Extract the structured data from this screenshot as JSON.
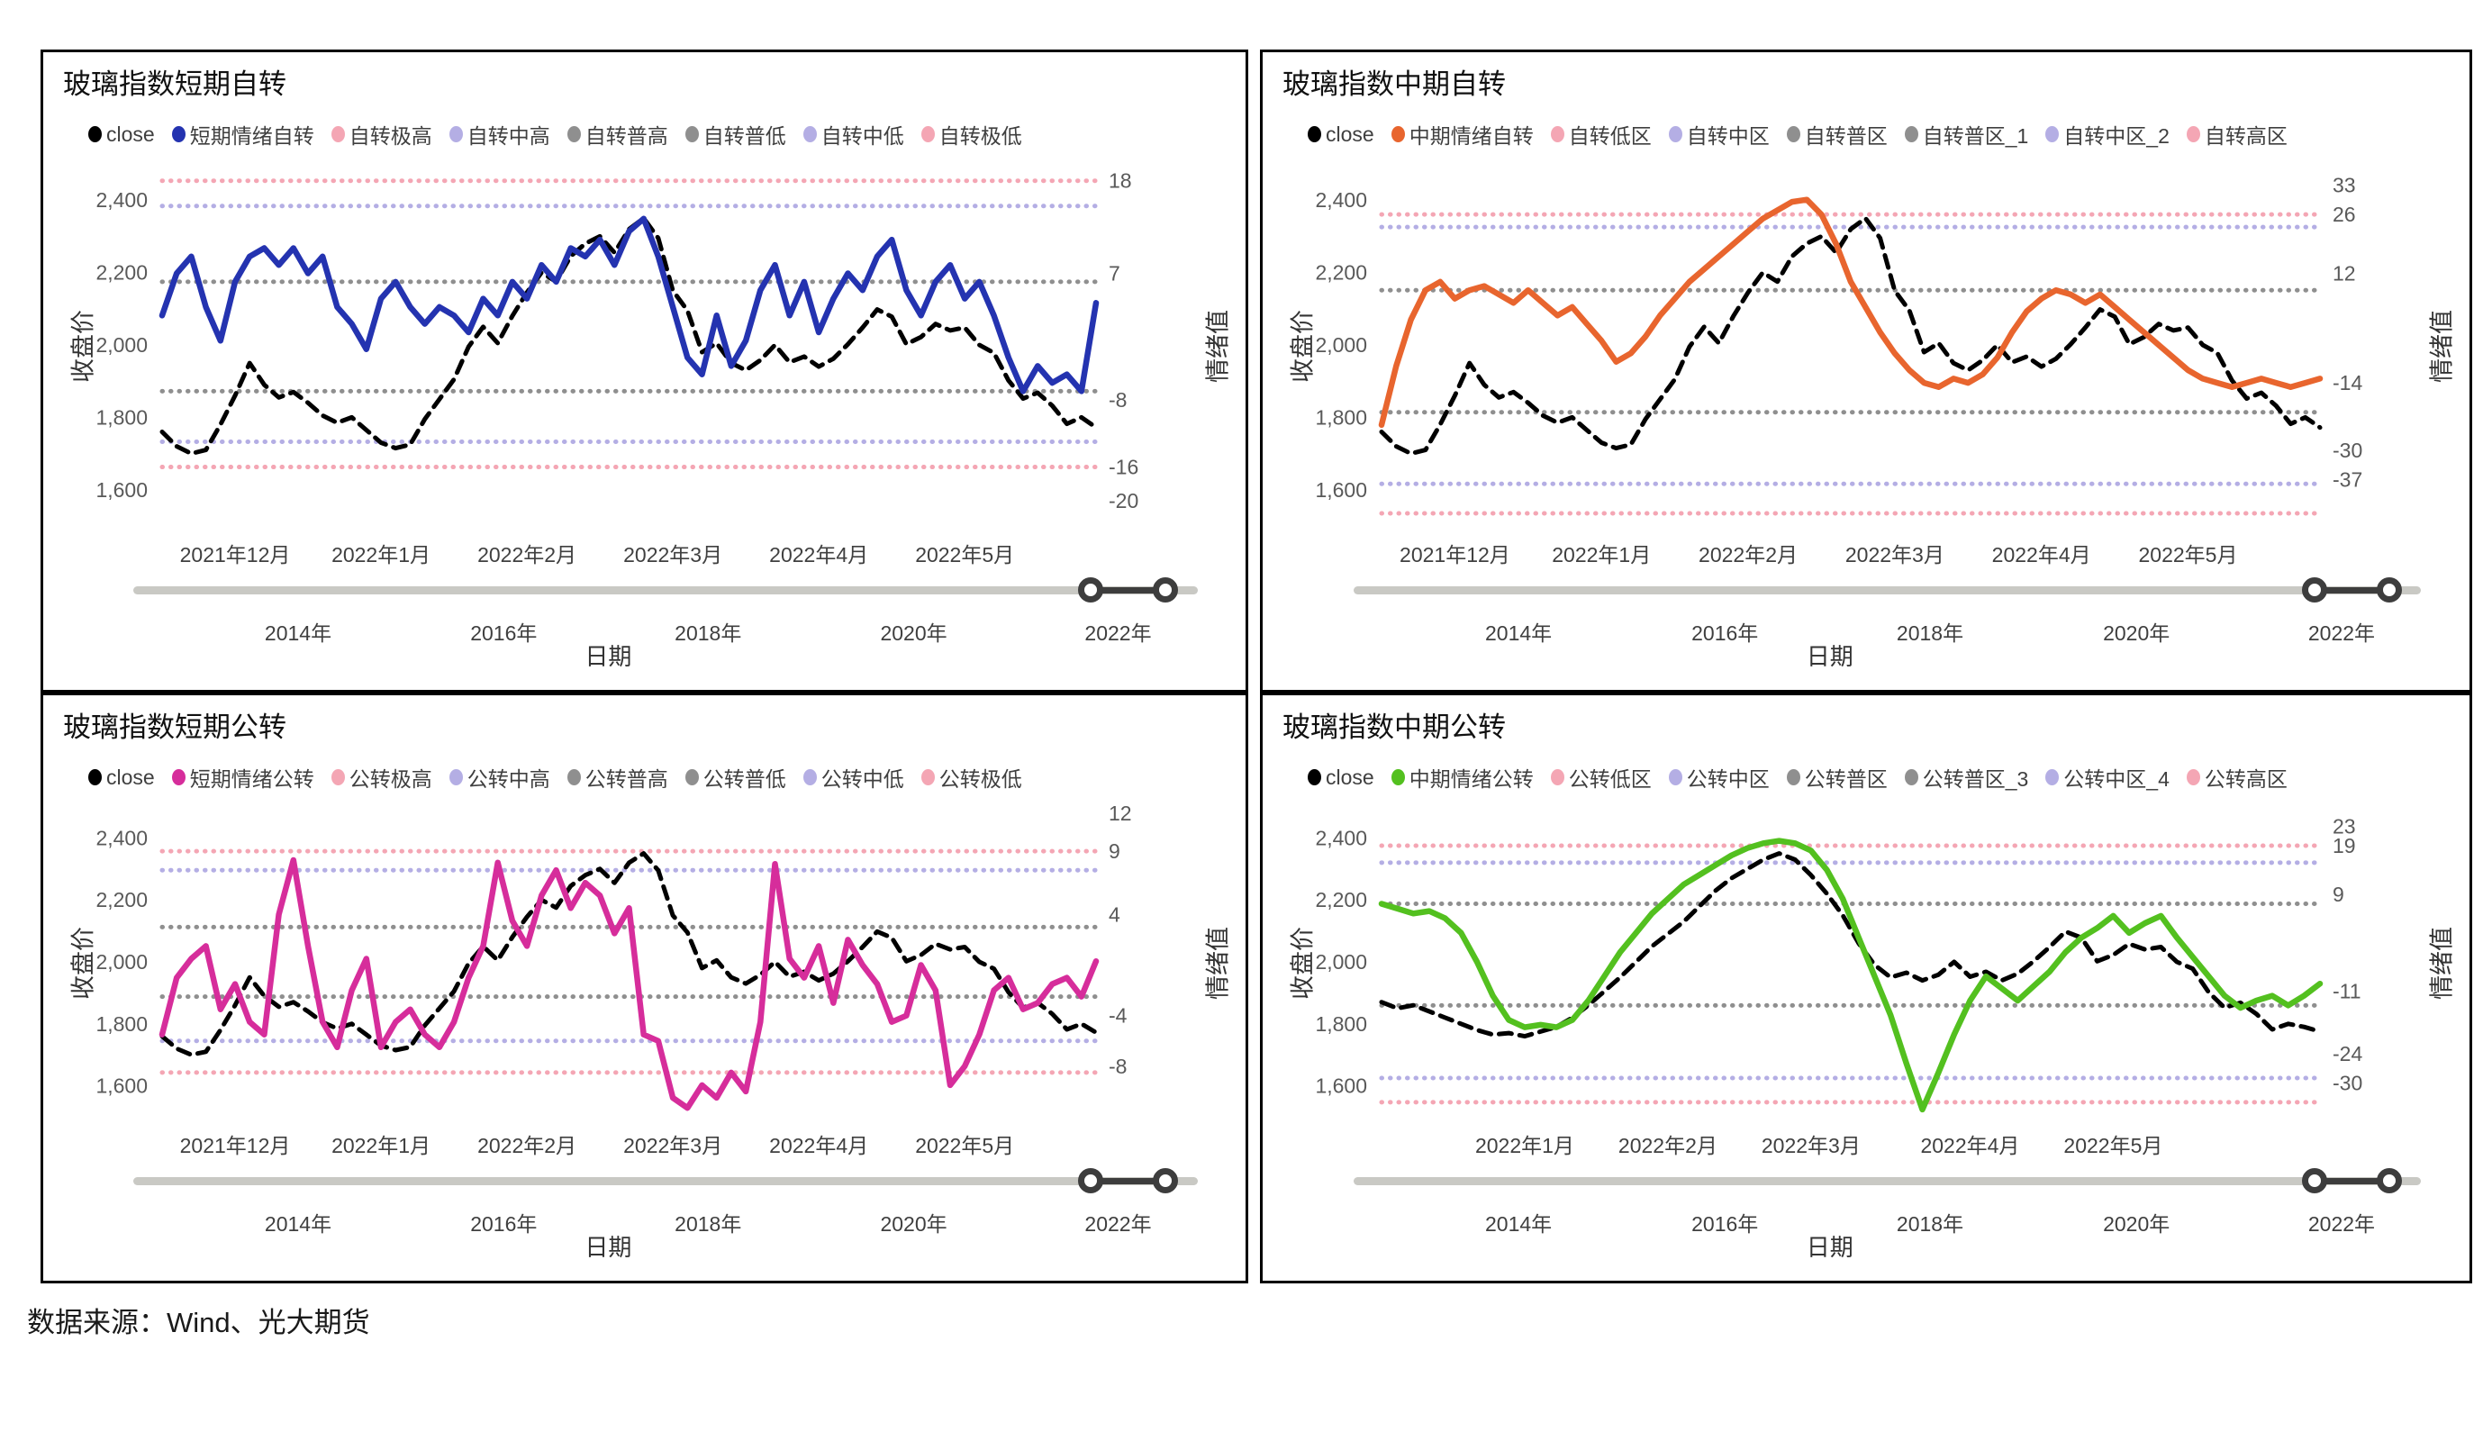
{
  "source_note": "数据来源：Wind、光大期货",
  "shared": {
    "left_axis_label": "收盘价",
    "right_axis_label": "情绪值",
    "x_axis_label": "日期",
    "left_axis_ticks": [
      {
        "label": "2,400",
        "value": 2400
      },
      {
        "label": "2,200",
        "value": 2200
      },
      {
        "label": "2,000",
        "value": 2000
      },
      {
        "label": "1,800",
        "value": 1800
      },
      {
        "label": "1,600",
        "value": 1600
      }
    ],
    "left_axis_range": {
      "min": 1500,
      "max": 2500
    },
    "slider_years": [
      "2014年",
      "2016年",
      "2018年",
      "2020年",
      "2022年"
    ],
    "colors": {
      "close": "#000000",
      "short_self": "#2433B0",
      "mid_self": "#E8652E",
      "short_public": "#D62D9B",
      "mid_public": "#53C01F",
      "band_pink": "#F4A6B4",
      "band_purple": "#B4AEE4",
      "band_gray": "#8F8F8F"
    }
  },
  "close_price_series": {
    "dec2021_to_may2022": [
      1760,
      1720,
      1700,
      1710,
      1780,
      1860,
      1950,
      1890,
      1855,
      1870,
      1840,
      1805,
      1785,
      1800,
      1765,
      1730,
      1715,
      1725,
      1795,
      1850,
      1905,
      1995,
      2050,
      2005,
      2080,
      2145,
      2200,
      2175,
      2245,
      2280,
      2300,
      2255,
      2320,
      2350,
      2295,
      2150,
      2095,
      1980,
      2005,
      1950,
      1930,
      1958,
      2000,
      1952,
      1968,
      1940,
      1962,
      2002,
      2048,
      2098,
      2078,
      2002,
      2022,
      2058,
      2040,
      2048,
      2000,
      1978,
      1902,
      1852,
      1868,
      1832,
      1782,
      1800,
      1772
    ],
    "mid_dec2021_to_may2022": [
      1870,
      1850,
      1860,
      1840,
      1820,
      1800,
      1780,
      1765,
      1770,
      1760,
      1775,
      1790,
      1820,
      1860,
      1905,
      1950,
      2000,
      2050,
      2090,
      2130,
      2180,
      2230,
      2270,
      2300,
      2330,
      2350,
      2330,
      2280,
      2220,
      2150,
      2060,
      1990,
      1950,
      1965,
      1940,
      1958,
      2000,
      1952,
      1968,
      1940,
      1962,
      2002,
      2048,
      2098,
      2078,
      2002,
      2022,
      2058,
      2040,
      2048,
      2000,
      1978,
      1902,
      1852,
      1868,
      1832,
      1782,
      1800,
      1790,
      1775
    ]
  },
  "chart_data": [
    {
      "type": "line",
      "title": "玻璃指数短期自转",
      "legend": [
        {
          "label": "close",
          "color": "#000000"
        },
        {
          "label": "短期情绪自转",
          "color": "#2433B0"
        },
        {
          "label": "自转极高",
          "color": "#F4A6B4"
        },
        {
          "label": "自转中高",
          "color": "#B4AEE4"
        },
        {
          "label": "自转普高",
          "color": "#8F8F8F"
        },
        {
          "label": "自转普低",
          "color": "#8F8F8F"
        },
        {
          "label": "自转中低",
          "color": "#B4AEE4"
        },
        {
          "label": "自转极低",
          "color": "#F4A6B4"
        }
      ],
      "x_tick_labels": [
        "2021年12月",
        "2022年1月",
        "2022年2月",
        "2022年3月",
        "2022年4月",
        "2022年5月"
      ],
      "x_label_indices": [
        5,
        15,
        25,
        35,
        45,
        55
      ],
      "right_axis": {
        "range": {
          "min": -23,
          "max": 20
        },
        "ticks": [
          18,
          7,
          -8,
          -16,
          -20
        ]
      },
      "thresholds": [
        {
          "name": "自转极高",
          "value": 18,
          "color": "#F4A6B4"
        },
        {
          "name": "自转中高",
          "value": 15,
          "color": "#B4AEE4"
        },
        {
          "name": "自转普高",
          "value": 6,
          "color": "#8F8F8F"
        },
        {
          "name": "自转普低",
          "value": -7,
          "color": "#8F8F8F"
        },
        {
          "name": "自转中低",
          "value": -13,
          "color": "#B4AEE4"
        },
        {
          "name": "自转极低",
          "value": -16,
          "color": "#F4A6B4"
        }
      ],
      "series": [
        {
          "name": "close",
          "axis": "left",
          "color": "#000000",
          "dashed": true,
          "values_ref": "dec2021_to_may2022"
        },
        {
          "name": "短期情绪自转",
          "axis": "right",
          "color": "#2433B0",
          "dashed": false,
          "values": [
            2,
            7,
            9,
            3,
            -1,
            6,
            9,
            10,
            8,
            10,
            7,
            9,
            3,
            1,
            -2,
            4,
            6,
            3,
            1,
            3,
            2,
            0,
            4,
            2,
            6,
            4,
            8,
            6,
            10,
            9,
            11,
            8,
            12,
            13.5,
            9,
            3,
            -3,
            -5,
            2,
            -4,
            -1,
            5,
            8,
            2,
            6,
            0,
            4,
            7,
            5,
            9,
            11,
            5,
            2,
            6,
            8,
            4,
            6,
            2,
            -3,
            -7,
            -4,
            -6,
            -5,
            -7,
            3.5
          ]
        }
      ]
    },
    {
      "type": "line",
      "title": "玻璃指数中期自转",
      "legend": [
        {
          "label": "close",
          "color": "#000000"
        },
        {
          "label": "中期情绪自转",
          "color": "#E8652E"
        },
        {
          "label": "自转低区",
          "color": "#F4A6B4"
        },
        {
          "label": "自转中区",
          "color": "#B4AEE4"
        },
        {
          "label": "自转普区",
          "color": "#8F8F8F"
        },
        {
          "label": "自转普区_1",
          "color": "#8F8F8F"
        },
        {
          "label": "自转中区_2",
          "color": "#B4AEE4"
        },
        {
          "label": "自转高区",
          "color": "#F4A6B4"
        }
      ],
      "x_tick_labels": [
        "2021年12月",
        "2022年1月",
        "2022年2月",
        "2022年3月",
        "2022年4月",
        "2022年5月"
      ],
      "x_label_indices": [
        5,
        15,
        25,
        35,
        45,
        55
      ],
      "right_axis": {
        "range": {
          "min": -48,
          "max": 38
        },
        "ticks": [
          33,
          26,
          12,
          -14,
          -30,
          -37
        ]
      },
      "thresholds": [
        {
          "name": "自转高区",
          "value": 26,
          "color": "#F4A6B4"
        },
        {
          "name": "自转中区_2",
          "value": 23,
          "color": "#B4AEE4"
        },
        {
          "name": "自转普区_1",
          "value": 8,
          "color": "#8F8F8F"
        },
        {
          "name": "自转普区",
          "value": -21,
          "color": "#8F8F8F"
        },
        {
          "name": "自转中区",
          "value": -38,
          "color": "#B4AEE4"
        },
        {
          "name": "自转低区",
          "value": -45,
          "color": "#F4A6B4"
        }
      ],
      "series": [
        {
          "name": "close",
          "axis": "left",
          "color": "#000000",
          "dashed": true,
          "values_ref": "dec2021_to_may2022"
        },
        {
          "name": "中期情绪自转",
          "axis": "right",
          "color": "#E8652E",
          "dashed": false,
          "values": [
            -24,
            -10,
            1,
            8,
            10,
            6,
            8,
            9,
            7,
            5,
            8,
            5,
            2,
            4,
            0,
            -4,
            -9,
            -7,
            -3,
            2,
            6,
            10,
            13,
            16,
            19,
            22,
            25,
            27,
            29,
            29.5,
            26,
            19,
            10,
            4,
            -2,
            -7,
            -11,
            -14,
            -15,
            -13,
            -14,
            -12,
            -8,
            -2,
            3,
            6,
            8,
            7,
            5,
            7,
            4,
            1,
            -2,
            -5,
            -8,
            -11,
            -13,
            -14,
            -15,
            -14,
            -13,
            -14,
            -15,
            -14,
            -13
          ]
        }
      ]
    },
    {
      "type": "line",
      "title": "玻璃指数短期公转",
      "legend": [
        {
          "label": "close",
          "color": "#000000"
        },
        {
          "label": "短期情绪公转",
          "color": "#D62D9B"
        },
        {
          "label": "公转极高",
          "color": "#F4A6B4"
        },
        {
          "label": "公转中高",
          "color": "#B4AEE4"
        },
        {
          "label": "公转普高",
          "color": "#8F8F8F"
        },
        {
          "label": "公转普低",
          "color": "#8F8F8F"
        },
        {
          "label": "公转中低",
          "color": "#B4AEE4"
        },
        {
          "label": "公转极低",
          "color": "#F4A6B4"
        }
      ],
      "x_tick_labels": [
        "2021年12月",
        "2022年1月",
        "2022年2月",
        "2022年3月",
        "2022年4月",
        "2022年5月"
      ],
      "x_label_indices": [
        5,
        15,
        25,
        35,
        45,
        55
      ],
      "right_axis": {
        "range": {
          "min": -12,
          "max": 12.5
        },
        "ticks": [
          12,
          9,
          4,
          -4,
          -8
        ]
      },
      "thresholds": [
        {
          "name": "公转极高",
          "value": 9,
          "color": "#F4A6B4"
        },
        {
          "name": "公转中高",
          "value": 7.5,
          "color": "#B4AEE4"
        },
        {
          "name": "公转普高",
          "value": 3,
          "color": "#8F8F8F"
        },
        {
          "name": "公转普低",
          "value": -2.5,
          "color": "#8F8F8F"
        },
        {
          "name": "公转中低",
          "value": -6,
          "color": "#B4AEE4"
        },
        {
          "name": "公转极低",
          "value": -8.5,
          "color": "#F4A6B4"
        }
      ],
      "series": [
        {
          "name": "close",
          "axis": "left",
          "color": "#000000",
          "dashed": true,
          "values_ref": "dec2021_to_may2022"
        },
        {
          "name": "短期情绪公转",
          "axis": "right",
          "color": "#D62D9B",
          "dashed": false,
          "values": [
            -5.5,
            -1,
            0.5,
            1.5,
            -3.5,
            -1.5,
            -4.5,
            -5.5,
            4,
            8.3,
            1.5,
            -4.5,
            -6.5,
            -2,
            0.5,
            -6.5,
            -4.5,
            -3.5,
            -5.5,
            -6.5,
            -4.5,
            -1,
            1.5,
            8.1,
            3.5,
            1.5,
            5.5,
            7.5,
            4.5,
            6.5,
            5.5,
            2.5,
            4.5,
            -5.5,
            -6,
            -10.5,
            -11.3,
            -9.5,
            -10.5,
            -8.5,
            -10,
            -4.5,
            8,
            0.5,
            -1,
            1.5,
            -3,
            2,
            0,
            -1.5,
            -4.5,
            -4,
            0,
            -2,
            -9.5,
            -8,
            -5.5,
            -2,
            -1,
            -3.5,
            -3,
            -1.5,
            -1,
            -2.5,
            0.3
          ]
        }
      ]
    },
    {
      "type": "line",
      "title": "玻璃指数中期公转",
      "legend": [
        {
          "label": "close",
          "color": "#000000"
        },
        {
          "label": "中期情绪公转",
          "color": "#53C01F"
        },
        {
          "label": "公转低区",
          "color": "#F4A6B4"
        },
        {
          "label": "公转中区",
          "color": "#B4AEE4"
        },
        {
          "label": "公转普区",
          "color": "#8F8F8F"
        },
        {
          "label": "公转普区_3",
          "color": "#8F8F8F"
        },
        {
          "label": "公转中区_4",
          "color": "#B4AEE4"
        },
        {
          "label": "公转高区",
          "color": "#F4A6B4"
        }
      ],
      "x_tick_labels": [
        "2022年1月",
        "2022年2月",
        "2022年3月",
        "2022年4月",
        "2022年5月"
      ],
      "x_label_indices": [
        9,
        18,
        27,
        37,
        46
      ],
      "right_axis": {
        "range": {
          "min": -37,
          "max": 27
        },
        "ticks": [
          23,
          19,
          9,
          -11,
          -24,
          -30
        ]
      },
      "thresholds": [
        {
          "name": "公转高区",
          "value": 19,
          "color": "#F4A6B4"
        },
        {
          "name": "公转中区_4",
          "value": 15.5,
          "color": "#B4AEE4"
        },
        {
          "name": "公转普区_3",
          "value": 7,
          "color": "#8F8F8F"
        },
        {
          "name": "公转普区",
          "value": -14,
          "color": "#8F8F8F"
        },
        {
          "name": "公转中区",
          "value": -29,
          "color": "#B4AEE4"
        },
        {
          "name": "公转低区",
          "value": -34,
          "color": "#F4A6B4"
        }
      ],
      "series": [
        {
          "name": "close",
          "axis": "left",
          "color": "#000000",
          "dashed": true,
          "values_ref": "mid_dec2021_to_may2022"
        },
        {
          "name": "中期情绪公转",
          "axis": "right",
          "color": "#53C01F",
          "dashed": false,
          "values": [
            7,
            6,
            5,
            5.5,
            4,
            1,
            -5,
            -12,
            -17,
            -18.5,
            -18,
            -18.5,
            -17,
            -13,
            -8,
            -3,
            1,
            5,
            8,
            11,
            13,
            15,
            17,
            18.5,
            19.5,
            20,
            19.5,
            18,
            14,
            8,
            0,
            -8,
            -16,
            -26,
            -35.5,
            -28,
            -20,
            -13,
            -8,
            -10.5,
            -13,
            -10,
            -7,
            -3,
            0,
            2,
            4.5,
            1,
            3,
            4.5,
            0,
            -4,
            -8,
            -12,
            -14.5,
            -13,
            -12,
            -14,
            -12,
            -9.5
          ]
        }
      ]
    }
  ]
}
